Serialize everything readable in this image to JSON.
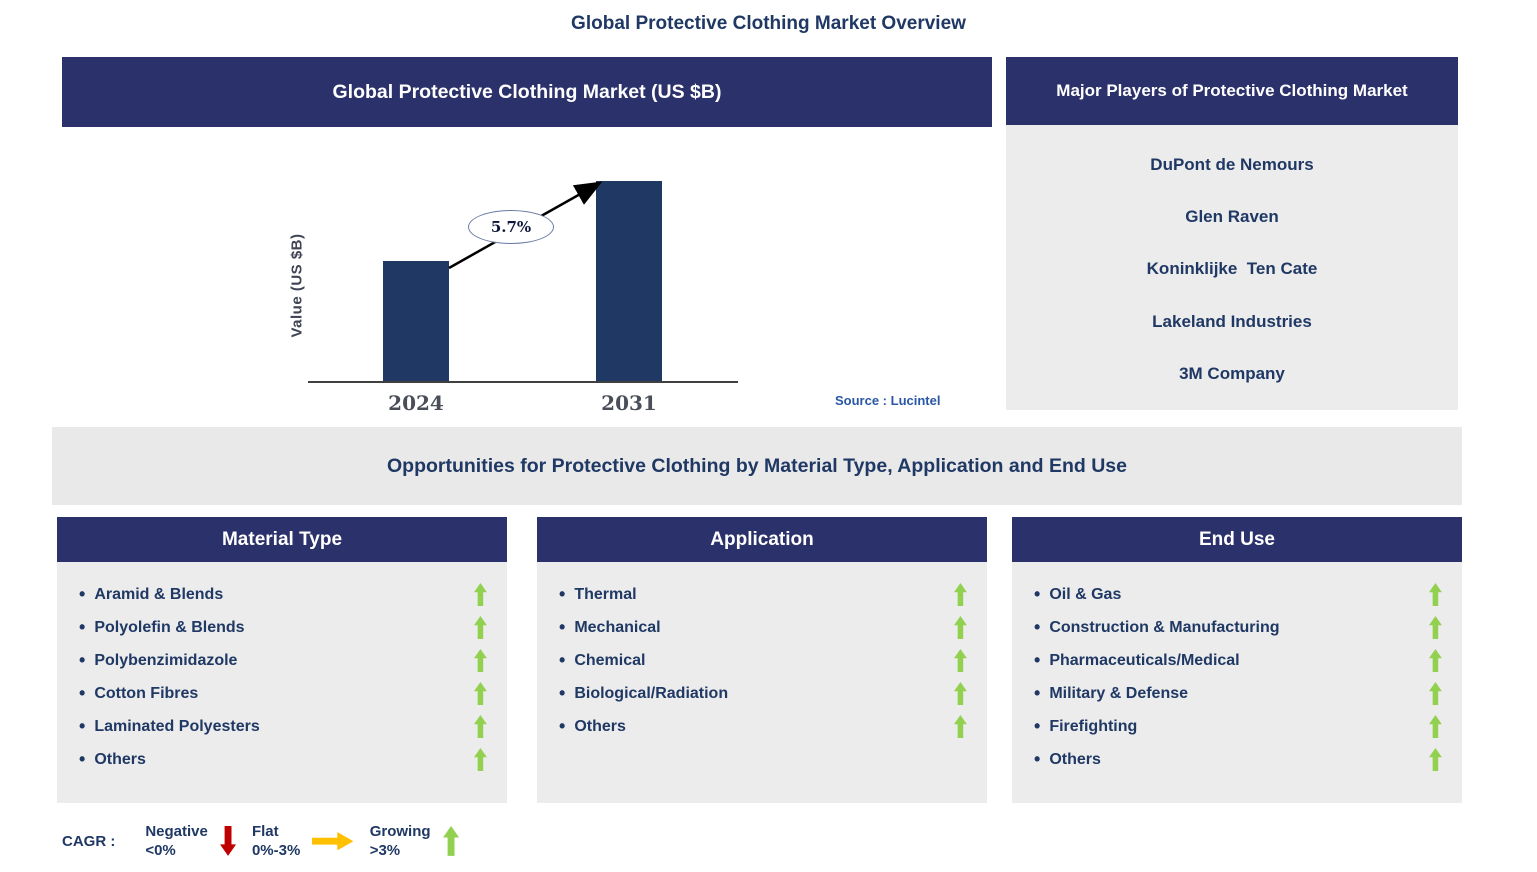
{
  "page_title": "Global Protective Clothing Market Overview",
  "chart_panel": {
    "header": "Global Protective Clothing Market (US $B)",
    "source": "Source : Lucintel"
  },
  "chart_data": {
    "type": "bar",
    "categories": [
      "2024",
      "2031"
    ],
    "values": [
      0.6,
      1.0
    ],
    "values_note": "value axis unlabeled; bar heights relative to 2031 bar",
    "title": "Global Protective Clothing Market (US $B)",
    "xlabel": "",
    "ylabel": "Value (US $B)",
    "annotation": "5.7%",
    "bar_color": "#1F3864",
    "legend_position": "none",
    "grid": false
  },
  "major_players": {
    "header": "Major Players of Protective Clothing Market",
    "companies": [
      "DuPont de Nemours",
      "Glen Raven",
      "Koninklijke  Ten Cate",
      "Lakeland Industries",
      "3M Company"
    ]
  },
  "opportunities_banner": "Opportunities for Protective Clothing by Material Type, Application and End Use",
  "columns": [
    {
      "header": "Material Type",
      "items": [
        "Aramid & Blends",
        "Polyolefin & Blends",
        "Polybenzimidazole",
        "Cotton Fibres",
        "Laminated Polyesters",
        "Others"
      ]
    },
    {
      "header": "Application",
      "items": [
        "Thermal",
        "Mechanical",
        "Chemical",
        "Biological/Radiation",
        "Others"
      ]
    },
    {
      "header": "End Use",
      "items": [
        "Oil & Gas",
        "Construction & Manufacturing",
        "Pharmaceuticals/Medical",
        "Military & Defense",
        "Firefighting",
        "Others"
      ]
    }
  ],
  "legend": {
    "label": "CAGR :",
    "entries": [
      {
        "name": "Negative",
        "range": "<0%",
        "direction": "down",
        "color": "#C00000"
      },
      {
        "name": "Flat",
        "range": "0%-3%",
        "direction": "right",
        "color": "#FFC000"
      },
      {
        "name": "Growing",
        "range": ">3%",
        "direction": "up",
        "color": "#92D050"
      }
    ]
  },
  "colors": {
    "header_bg": "#2B316A",
    "panel_bg": "#ECECEC",
    "title_text": "#1F3864",
    "item_text": "#1F3864",
    "growth_arrow": "#92D050",
    "bar": "#1F3864",
    "source_text": "#2A57A5"
  }
}
